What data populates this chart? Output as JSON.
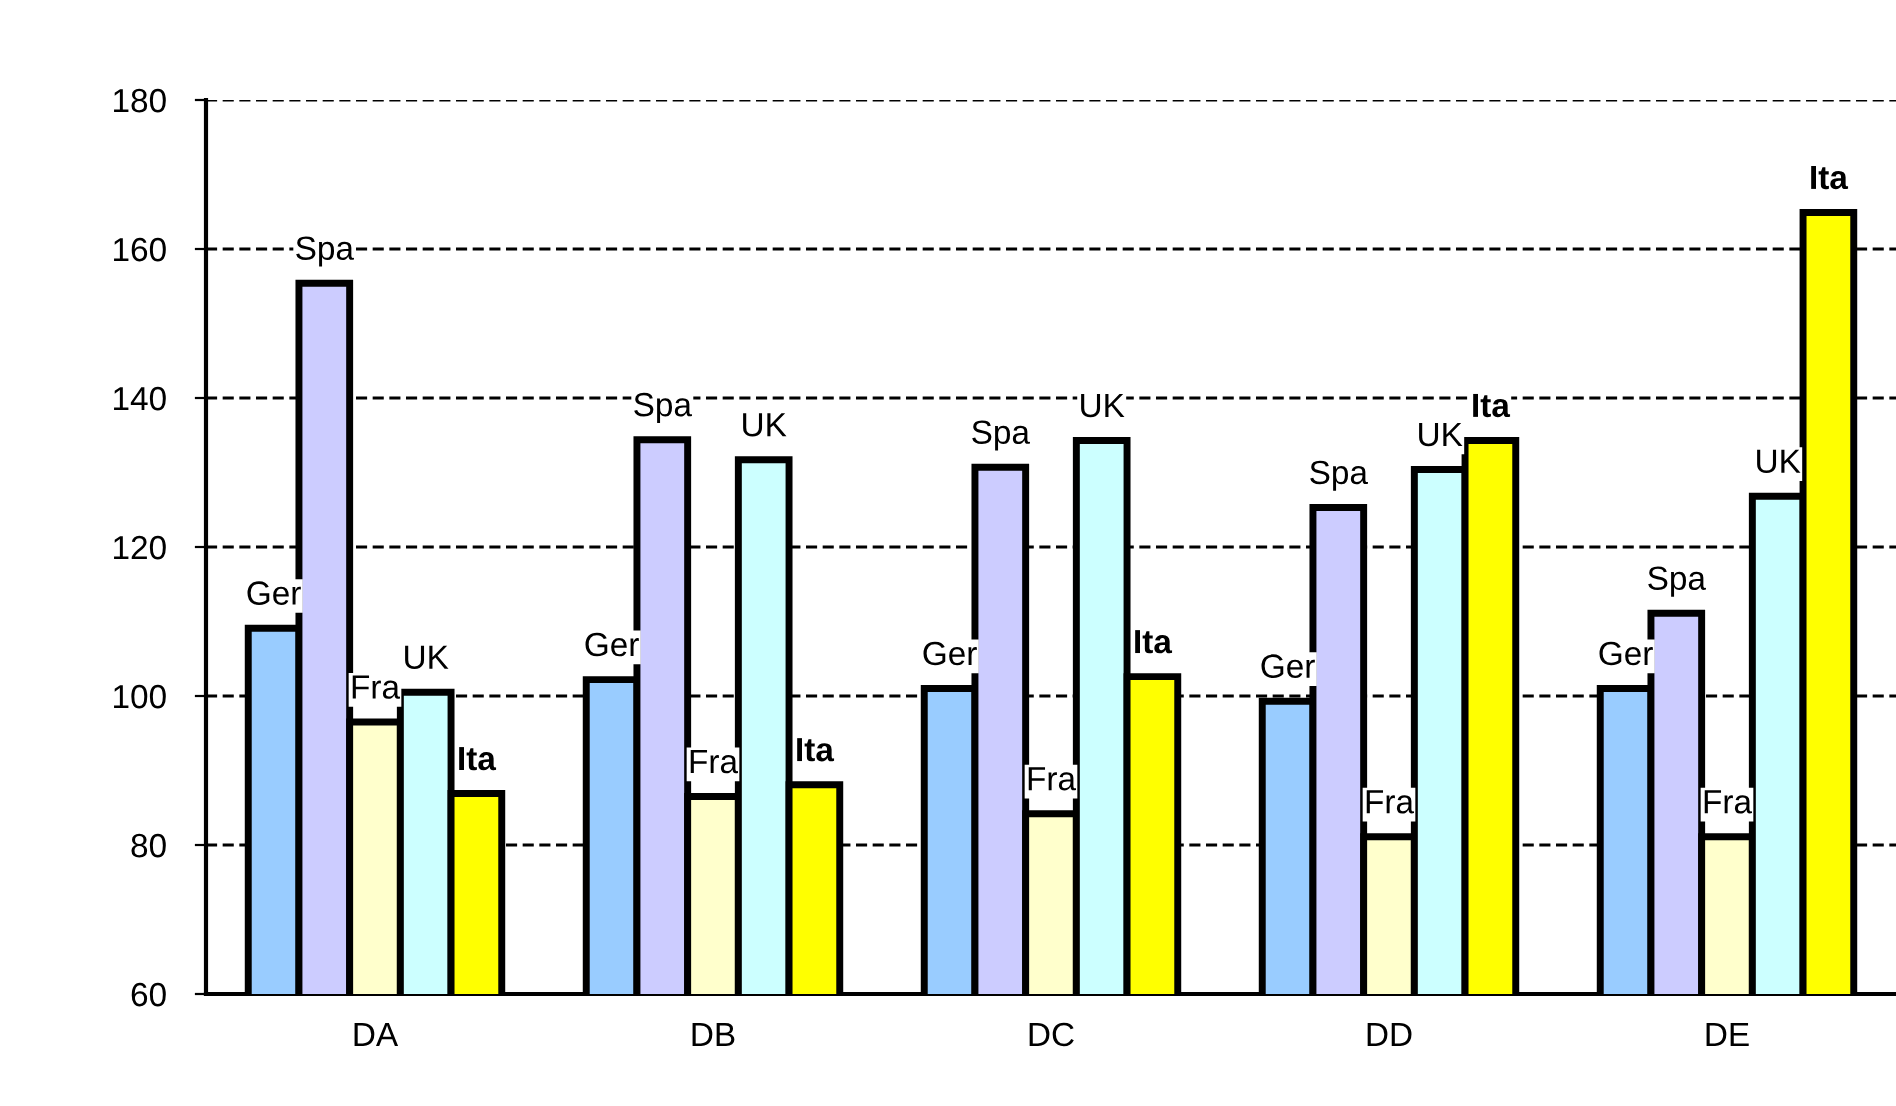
{
  "chart_data": {
    "type": "bar",
    "categories": [
      "DA",
      "DB",
      "DC",
      "DD",
      "DE"
    ],
    "series": [
      {
        "name": "Ger",
        "color": "#99ccff",
        "values": [
          109.1,
          102.2,
          101,
          99.3,
          101
        ]
      },
      {
        "name": "Spa",
        "color": "#ccccff",
        "values": [
          155.4,
          134.4,
          130.7,
          125.3,
          111.1
        ]
      },
      {
        "name": "Fra",
        "color": "#ffffcc",
        "values": [
          96.5,
          86.5,
          84.2,
          81.1,
          81.1
        ]
      },
      {
        "name": "UK",
        "color": "#ccffff",
        "values": [
          100.5,
          131.7,
          134.3,
          130.4,
          126.8
        ]
      },
      {
        "name": "Ita",
        "color": "#ffff00",
        "values": [
          86.9,
          88.1,
          102.6,
          134.3,
          164.9
        ]
      }
    ],
    "ylim": [
      60,
      180
    ],
    "yticks": [
      60,
      80,
      100,
      120,
      140,
      160,
      180
    ],
    "grid": "y",
    "legend": false
  }
}
